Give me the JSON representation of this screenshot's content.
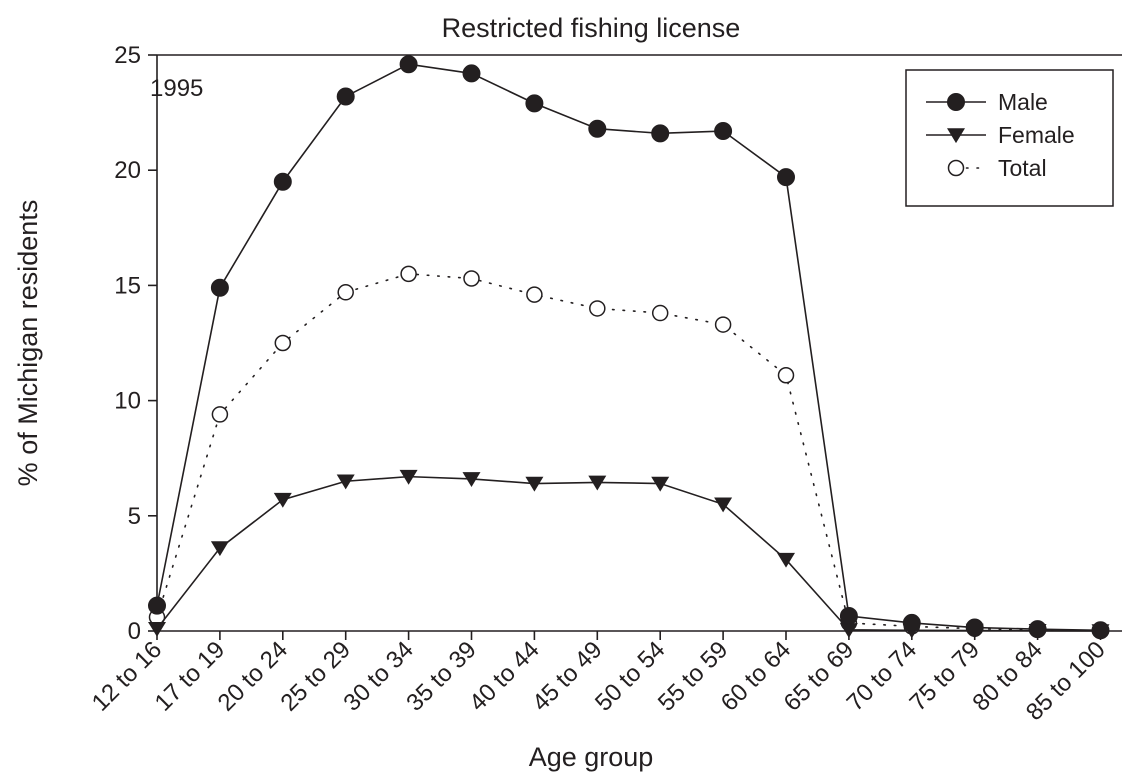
{
  "chart_data": {
    "type": "line",
    "title": "Restricted fishing license",
    "xlabel": "Age group",
    "ylabel": "% of Michigan residents",
    "annotation": "1995",
    "categories": [
      "12 to 16",
      "17 to 19",
      "20 to 24",
      "25 to 29",
      "30 to 34",
      "35 to 39",
      "40 to 44",
      "45 to 49",
      "50 to 54",
      "55 to 59",
      "60 to 64",
      "65 to 69",
      "70 to 74",
      "75 to 79",
      "80 to 84",
      "85 to 100"
    ],
    "ylim": [
      0,
      25
    ],
    "yticks": [
      0,
      5,
      10,
      15,
      20,
      25
    ],
    "legend_position": "top-right",
    "grid": false,
    "series": [
      {
        "name": "Male",
        "marker": "filled-circle",
        "line": "solid",
        "values": [
          1.1,
          14.9,
          19.5,
          23.2,
          24.6,
          24.2,
          22.9,
          21.8,
          21.6,
          21.7,
          19.7,
          0.65,
          0.35,
          0.15,
          0.08,
          0.03
        ]
      },
      {
        "name": "Female",
        "marker": "filled-triangle-down",
        "line": "solid",
        "values": [
          0.1,
          3.6,
          5.7,
          6.5,
          6.7,
          6.6,
          6.4,
          6.45,
          6.4,
          5.5,
          3.1,
          0.05,
          0.03,
          0.02,
          0.01,
          0.0
        ]
      },
      {
        "name": "Total",
        "marker": "open-circle",
        "line": "dotted",
        "values": [
          0.6,
          9.4,
          12.5,
          14.7,
          15.5,
          15.3,
          14.6,
          14.0,
          13.8,
          13.3,
          11.1,
          0.35,
          0.2,
          0.1,
          0.05,
          0.02
        ]
      }
    ],
    "colors": {
      "ink": "#231f20",
      "background": "#ffffff"
    }
  }
}
